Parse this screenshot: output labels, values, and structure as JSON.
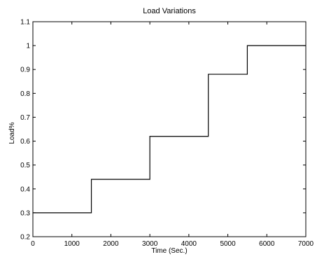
{
  "chart_data": {
    "type": "line",
    "style": "step",
    "title": "Load Variations",
    "xlabel": "Time (Sec.)",
    "ylabel": "Load%",
    "xlim": [
      0,
      7000
    ],
    "ylim": [
      0.2,
      1.1
    ],
    "xticks": [
      0,
      1000,
      2000,
      3000,
      4000,
      5000,
      6000,
      7000
    ],
    "yticks": [
      0.2,
      0.3,
      0.4,
      0.5,
      0.6,
      0.7,
      0.8,
      0.9,
      1,
      1.1
    ],
    "xtick_labels": [
      "0",
      "1000",
      "2000",
      "3000",
      "4000",
      "5000",
      "6000",
      "7000"
    ],
    "ytick_labels": [
      "0.2",
      "0.3",
      "0.4",
      "0.5",
      "0.6",
      "0.7",
      "0.8",
      "0.9",
      "1",
      "1.1"
    ],
    "grid": false,
    "series": [
      {
        "color": "#000000",
        "x": [
          0,
          1500,
          1500,
          3000,
          3000,
          4500,
          4500,
          5500,
          5500,
          7000
        ],
        "y": [
          0.3,
          0.3,
          0.44,
          0.44,
          0.62,
          0.62,
          0.88,
          0.88,
          1.0,
          1.0
        ]
      }
    ]
  }
}
